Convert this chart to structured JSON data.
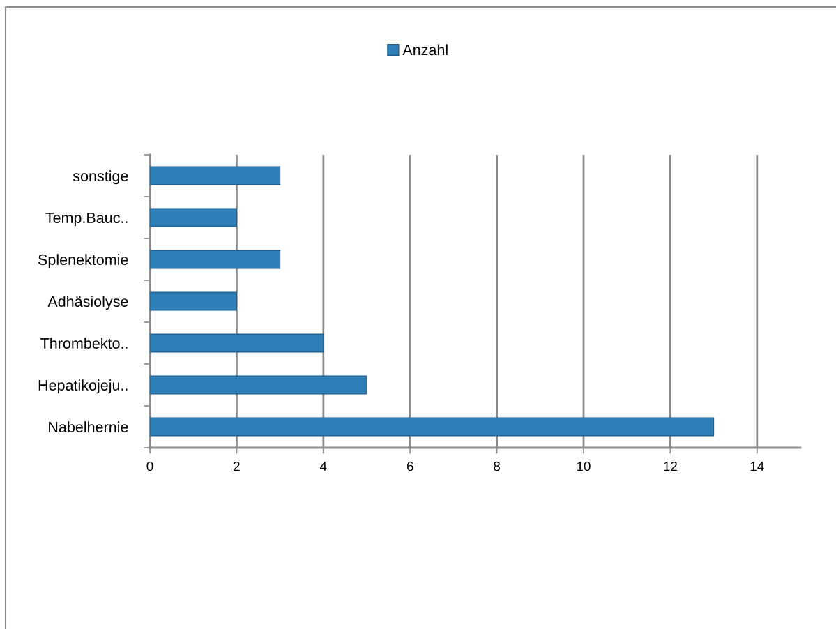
{
  "chart_data": {
    "type": "bar",
    "orientation": "horizontal",
    "categories": [
      "sonstige",
      "Temp.Bauc..",
      "Splenektomie",
      "Adhäsiolyse",
      "Thrombekto..",
      "Hepatikojeju..",
      "Nabelhernie"
    ],
    "series": [
      {
        "name": "Anzahl",
        "color": "#2e7eb8",
        "values": [
          3,
          2,
          3,
          2,
          4,
          5,
          13
        ]
      }
    ],
    "xlim": [
      0,
      15
    ],
    "xticks": [
      0,
      2,
      4,
      6,
      8,
      10,
      12,
      14
    ],
    "grid": "x",
    "legend": "top"
  }
}
